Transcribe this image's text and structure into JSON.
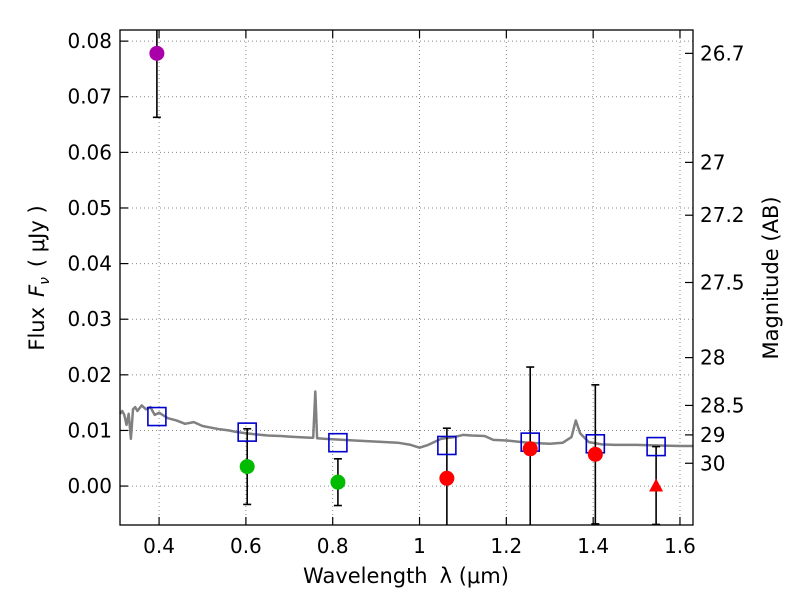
{
  "chart_data": {
    "type": "scatter",
    "title": "",
    "xlabel": "Wavelength",
    "xlabel_symbol": "λ (μm)",
    "ylabel": "Flux",
    "ylabel_symbol": "F",
    "ylabel_sub": "ν",
    "ylabel_unit": "( μJy )",
    "y2label": "Magnitude (AB)",
    "xlim": [
      0.31,
      1.63
    ],
    "ylim": [
      -0.007,
      0.082
    ],
    "grid": true,
    "x_ticks": [
      0.4,
      0.6,
      0.8,
      1.0,
      1.2,
      1.4,
      1.6
    ],
    "x_tick_labels": [
      "0.4",
      "0.6",
      "0.8",
      "1",
      "1.2",
      "1.4",
      "1.6"
    ],
    "y_ticks": [
      0.0,
      0.01,
      0.02,
      0.03,
      0.04,
      0.05,
      0.06,
      0.07,
      0.08
    ],
    "y_tick_labels": [
      "0.00",
      "0.01",
      "0.02",
      "0.03",
      "0.04",
      "0.05",
      "0.06",
      "0.07",
      "0.08"
    ],
    "mag_ticks": [
      {
        "label": "26.7",
        "flux": 0.0778
      },
      {
        "label": "27",
        "flux": 0.0582
      },
      {
        "label": "27.2",
        "flux": 0.0487
      },
      {
        "label": "27.5",
        "flux": 0.0366
      },
      {
        "label": "28",
        "flux": 0.0231
      },
      {
        "label": "28.5",
        "flux": 0.0145
      },
      {
        "label": "29",
        "flux": 0.0092
      },
      {
        "label": "30",
        "flux": 0.0041
      }
    ],
    "colors": {
      "template": "#808080",
      "model": "#0000cc",
      "purple": "#aa00aa",
      "green": "#00bb00",
      "red": "#ff0000",
      "grid": "#888888"
    },
    "template_spectrum": [
      [
        0.31,
        0.013
      ],
      [
        0.315,
        0.0135
      ],
      [
        0.32,
        0.0128
      ],
      [
        0.325,
        0.011
      ],
      [
        0.33,
        0.013
      ],
      [
        0.335,
        0.0085
      ],
      [
        0.34,
        0.0138
      ],
      [
        0.345,
        0.0142
      ],
      [
        0.35,
        0.0135
      ],
      [
        0.36,
        0.0145
      ],
      [
        0.37,
        0.0138
      ],
      [
        0.38,
        0.0142
      ],
      [
        0.39,
        0.0128
      ],
      [
        0.4,
        0.0132
      ],
      [
        0.42,
        0.0122
      ],
      [
        0.44,
        0.0118
      ],
      [
        0.46,
        0.0112
      ],
      [
        0.48,
        0.0115
      ],
      [
        0.5,
        0.0108
      ],
      [
        0.52,
        0.0105
      ],
      [
        0.54,
        0.0102
      ],
      [
        0.56,
        0.01
      ],
      [
        0.58,
        0.0097
      ],
      [
        0.6,
        0.0095
      ],
      [
        0.62,
        0.0093
      ],
      [
        0.65,
        0.0091
      ],
      [
        0.68,
        0.009
      ],
      [
        0.7,
        0.0089
      ],
      [
        0.72,
        0.0088
      ],
      [
        0.75,
        0.0087
      ],
      [
        0.755,
        0.0087
      ],
      [
        0.76,
        0.017
      ],
      [
        0.764,
        0.0086
      ],
      [
        0.78,
        0.0085
      ],
      [
        0.8,
        0.0084
      ],
      [
        0.85,
        0.0082
      ],
      [
        0.9,
        0.008
      ],
      [
        0.95,
        0.0078
      ],
      [
        0.98,
        0.0074
      ],
      [
        1.0,
        0.0069
      ],
      [
        1.02,
        0.0074
      ],
      [
        1.05,
        0.0085
      ],
      [
        1.08,
        0.0088
      ],
      [
        1.1,
        0.0092
      ],
      [
        1.12,
        0.0091
      ],
      [
        1.15,
        0.009
      ],
      [
        1.17,
        0.0083
      ],
      [
        1.2,
        0.0082
      ],
      [
        1.25,
        0.0078
      ],
      [
        1.3,
        0.0076
      ],
      [
        1.33,
        0.0078
      ],
      [
        1.35,
        0.0088
      ],
      [
        1.36,
        0.0118
      ],
      [
        1.37,
        0.0095
      ],
      [
        1.39,
        0.0079
      ],
      [
        1.42,
        0.0075
      ],
      [
        1.45,
        0.0074
      ],
      [
        1.5,
        0.0074
      ],
      [
        1.55,
        0.0073
      ],
      [
        1.6,
        0.0072
      ],
      [
        1.63,
        0.0072
      ]
    ],
    "model_points": [
      {
        "x": 0.395,
        "y": 0.0125
      },
      {
        "x": 0.603,
        "y": 0.0097
      },
      {
        "x": 0.812,
        "y": 0.0078
      },
      {
        "x": 1.063,
        "y": 0.0073
      },
      {
        "x": 1.255,
        "y": 0.0079
      },
      {
        "x": 1.405,
        "y": 0.0076
      },
      {
        "x": 1.545,
        "y": 0.0071
      }
    ],
    "observed_points": [
      {
        "x": 0.395,
        "y": 0.0778,
        "yerr": 0.0115,
        "color": "purple",
        "marker": "circle"
      },
      {
        "x": 0.603,
        "y": 0.0035,
        "yerr": 0.0068,
        "color": "green",
        "marker": "circle"
      },
      {
        "x": 0.812,
        "y": 0.0007,
        "yerr": 0.0042,
        "color": "green",
        "marker": "circle"
      },
      {
        "x": 1.063,
        "y": 0.0014,
        "yerr": 0.009,
        "color": "red",
        "marker": "circle"
      },
      {
        "x": 1.255,
        "y": 0.0067,
        "yerr": 0.0147,
        "color": "red",
        "marker": "circle"
      },
      {
        "x": 1.405,
        "y": 0.0057,
        "yerr": 0.0125,
        "color": "red",
        "marker": "circle"
      },
      {
        "x": 1.545,
        "y": 0.0001,
        "yerr": 0.007,
        "color": "red",
        "marker": "triangle"
      }
    ]
  }
}
